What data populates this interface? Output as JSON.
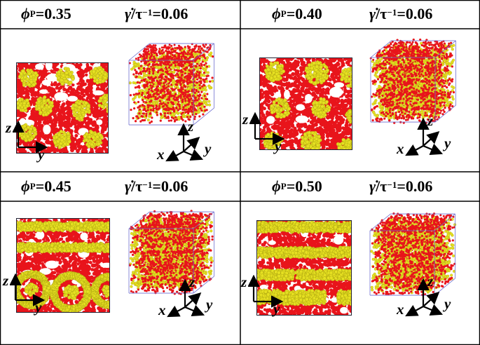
{
  "panels": [
    {
      "phi_symbol": "ϕ",
      "phi_sub": "P",
      "phi_value": "=0.35",
      "rate_symbol": "γ̇",
      "rate_unit": " /τ",
      "rate_exp": "−1",
      "rate_value": "=0.06"
    },
    {
      "phi_symbol": "ϕ",
      "phi_sub": "P",
      "phi_value": "=0.40",
      "rate_symbol": "γ̇",
      "rate_unit": " /τ",
      "rate_exp": "−1",
      "rate_value": "=0.06"
    },
    {
      "phi_symbol": "ϕ",
      "phi_sub": "P",
      "phi_value": "=0.45",
      "rate_symbol": "γ̇",
      "rate_unit": " /τ",
      "rate_exp": "−1",
      "rate_value": "=0.06"
    },
    {
      "phi_symbol": "ϕ",
      "phi_sub": "P",
      "phi_value": "=0.50",
      "rate_symbol": "γ̇",
      "rate_unit": " /τ",
      "rate_exp": "−1",
      "rate_value": "=0.06"
    }
  ],
  "axes": {
    "x": "x",
    "y": "y",
    "z": "z"
  },
  "colors": {
    "red": "#e8141b",
    "yellow": "#e6e021",
    "box": "#6f6fd0"
  }
}
